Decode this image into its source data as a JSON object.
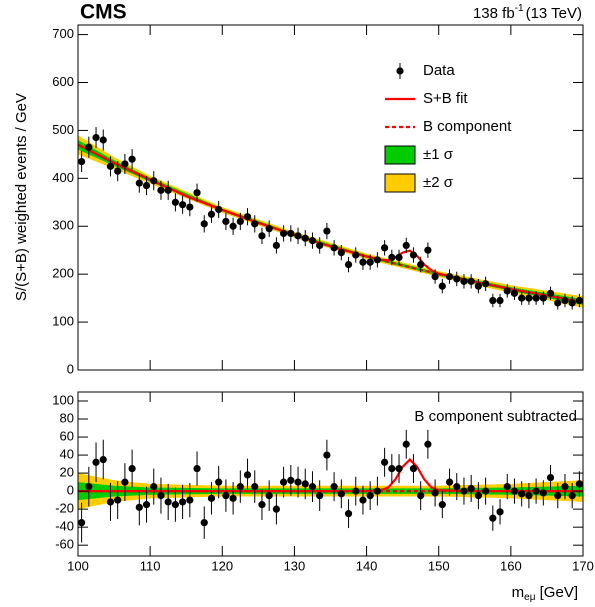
{
  "chart_data": [
    {
      "type": "fit",
      "title": "CMS",
      "lumi": [
        "138 fb",
        "-1",
        "(13 TeV)"
      ],
      "ylabel": "S/(S+B) weighted events / GeV",
      "legend": "upper right",
      "xlim": [
        100,
        170
      ],
      "ylim": [
        0,
        720
      ],
      "xticks": [
        100,
        110,
        120,
        130,
        140,
        150,
        160,
        170
      ],
      "yticks": [
        0,
        100,
        200,
        300,
        400,
        500,
        600,
        700
      ],
      "data": {
        "name": "Data",
        "color": "#000000",
        "x": [
          100.5,
          101.5,
          102.5,
          103.5,
          104.5,
          105.5,
          106.5,
          107.5,
          108.5,
          109.5,
          110.5,
          111.5,
          112.5,
          113.5,
          114.5,
          115.5,
          116.5,
          117.5,
          118.5,
          119.5,
          120.5,
          121.5,
          122.5,
          123.5,
          124.5,
          125.5,
          126.5,
          127.5,
          128.5,
          129.5,
          130.5,
          131.5,
          132.5,
          133.5,
          134.5,
          135.5,
          136.5,
          137.5,
          138.5,
          139.5,
          140.5,
          141.5,
          142.5,
          143.5,
          144.5,
          145.5,
          146.5,
          147.5,
          148.5,
          149.5,
          150.5,
          151.5,
          152.5,
          153.5,
          154.5,
          155.5,
          156.5,
          157.5,
          158.5,
          159.5,
          160.5,
          161.5,
          162.5,
          163.5,
          164.5,
          165.5,
          166.5,
          167.5,
          168.5,
          169.5
        ],
        "values": [
          435,
          465,
          485,
          480,
          425,
          415,
          430,
          440,
          390,
          385,
          395,
          375,
          375,
          350,
          345,
          340,
          370,
          305,
          325,
          335,
          310,
          300,
          310,
          320,
          305,
          280,
          295,
          260,
          285,
          285,
          280,
          275,
          270,
          260,
          290,
          255,
          245,
          220,
          240,
          225,
          225,
          230,
          255,
          235,
          235,
          260,
          240,
          220,
          250,
          195,
          175,
          195,
          190,
          185,
          185,
          175,
          180,
          145,
          145,
          165,
          160,
          150,
          150,
          150,
          150,
          160,
          140,
          145,
          140,
          145
        ],
        "errors": [
          22,
          22,
          22,
          22,
          21,
          21,
          21,
          21,
          20,
          20,
          20,
          20,
          20,
          19,
          19,
          19,
          19,
          18,
          18,
          18,
          18,
          18,
          18,
          18,
          18,
          17,
          17,
          17,
          17,
          17,
          17,
          17,
          17,
          17,
          17,
          16,
          16,
          16,
          16,
          16,
          16,
          16,
          16,
          16,
          16,
          16,
          16,
          16,
          16,
          15,
          15,
          15,
          15,
          15,
          15,
          15,
          15,
          14,
          14,
          14,
          14,
          14,
          14,
          14,
          14,
          14,
          14,
          14,
          14,
          14
        ]
      },
      "curves": [
        {
          "name": "S+B fit",
          "color": "#ff0000",
          "dash": false,
          "x": [
            100,
            105,
            110,
            115,
            120,
            125,
            130,
            135,
            140,
            142,
            143,
            144,
            145,
            146,
            147,
            148,
            149,
            150,
            155,
            160,
            165,
            170
          ],
          "values": [
            470,
            432,
            397,
            363,
            334,
            307,
            282,
            258,
            237,
            230,
            229,
            235,
            245,
            249,
            238,
            220,
            208,
            201,
            184,
            169,
            155,
            142
          ]
        },
        {
          "name": "B component",
          "color": "#ff0000",
          "dash": true,
          "x": [
            100,
            105,
            110,
            115,
            120,
            125,
            130,
            135,
            140,
            145,
            150,
            155,
            160,
            165,
            170
          ],
          "values": [
            470,
            432,
            397,
            363,
            334,
            307,
            282,
            258,
            237,
            218,
            200,
            184,
            169,
            155,
            142
          ]
        }
      ],
      "bands": [
        {
          "name": "±2 σ",
          "color": "#ffcc00",
          "x": [
            100,
            105,
            110,
            120,
            130,
            140,
            150,
            160,
            170
          ],
          "lower": [
            450,
            420,
            389,
            328,
            276,
            231,
            194,
            161,
            130
          ],
          "upper": [
            490,
            444,
            405,
            340,
            288,
            243,
            206,
            177,
            154
          ]
        },
        {
          "name": "±1 σ",
          "color": "#00cc00",
          "x": [
            100,
            105,
            110,
            120,
            130,
            140,
            150,
            160,
            170
          ],
          "lower": [
            460,
            426,
            393,
            331,
            279,
            234,
            197,
            165,
            136
          ],
          "upper": [
            480,
            438,
            401,
            337,
            285,
            240,
            203,
            173,
            148
          ]
        }
      ]
    },
    {
      "type": "fit",
      "annotation": "B component subtracted",
      "xlabel": [
        "m",
        "eμ",
        " [GeV]"
      ],
      "xlim": [
        100,
        170
      ],
      "ylim": [
        -72,
        110
      ],
      "xticks": [
        100,
        110,
        120,
        130,
        140,
        150,
        160,
        170
      ],
      "yticks": [
        -60,
        -40,
        -20,
        0,
        20,
        40,
        60,
        80,
        100
      ],
      "data": {
        "color": "#000000",
        "x": [
          100.5,
          101.5,
          102.5,
          103.5,
          104.5,
          105.5,
          106.5,
          107.5,
          108.5,
          109.5,
          110.5,
          111.5,
          112.5,
          113.5,
          114.5,
          115.5,
          116.5,
          117.5,
          118.5,
          119.5,
          120.5,
          121.5,
          122.5,
          123.5,
          124.5,
          125.5,
          126.5,
          127.5,
          128.5,
          129.5,
          130.5,
          131.5,
          132.5,
          133.5,
          134.5,
          135.5,
          136.5,
          137.5,
          138.5,
          139.5,
          140.5,
          141.5,
          142.5,
          143.5,
          144.5,
          145.5,
          146.5,
          147.5,
          148.5,
          149.5,
          150.5,
          151.5,
          152.5,
          153.5,
          154.5,
          155.5,
          156.5,
          157.5,
          158.5,
          159.5,
          160.5,
          161.5,
          162.5,
          163.5,
          164.5,
          165.5,
          166.5,
          167.5,
          168.5,
          169.5
        ],
        "values": [
          -35,
          5,
          32,
          35,
          -12,
          -10,
          10,
          25,
          -18,
          -15,
          5,
          -5,
          -12,
          -15,
          -12,
          -10,
          25,
          -35,
          -8,
          10,
          -5,
          -8,
          5,
          18,
          5,
          -15,
          -5,
          -20,
          10,
          12,
          10,
          8,
          5,
          -5,
          40,
          5,
          -3,
          -25,
          0,
          -10,
          -5,
          0,
          32,
          25,
          25,
          52,
          25,
          -5,
          52,
          -2,
          -15,
          10,
          5,
          0,
          3,
          -5,
          0,
          -30,
          -23,
          5,
          0,
          -3,
          -5,
          0,
          -2,
          15,
          -5,
          5,
          -5,
          8
        ],
        "errors": [
          22,
          22,
          22,
          22,
          21,
          21,
          21,
          21,
          20,
          20,
          20,
          20,
          20,
          19,
          19,
          19,
          19,
          18,
          18,
          18,
          18,
          18,
          18,
          18,
          18,
          17,
          17,
          17,
          17,
          17,
          17,
          17,
          17,
          17,
          17,
          16,
          16,
          16,
          16,
          16,
          16,
          16,
          16,
          16,
          16,
          16,
          16,
          16,
          16,
          15,
          15,
          15,
          15,
          15,
          15,
          15,
          15,
          14,
          14,
          14,
          14,
          14,
          14,
          14,
          14,
          14,
          14,
          14,
          14,
          14
        ]
      },
      "curves": [
        {
          "color": "#ff0000",
          "dash": false,
          "x": [
            100,
            105,
            110,
            115,
            120,
            125,
            130,
            135,
            140,
            142,
            143,
            144,
            145,
            146,
            147,
            148,
            149,
            150,
            155,
            160,
            165,
            170
          ],
          "values": [
            0,
            0,
            0,
            0,
            0,
            0,
            0,
            0,
            0,
            1,
            4,
            13,
            27,
            35,
            27,
            13,
            4,
            1,
            0,
            0,
            0,
            0
          ]
        },
        {
          "color": "#ff0000",
          "dash": true,
          "x": [
            100,
            170
          ],
          "values": [
            0,
            0
          ]
        }
      ],
      "bands": [
        {
          "color": "#ffcc00",
          "x": [
            100,
            105,
            110,
            120,
            130,
            140,
            150,
            160,
            170
          ],
          "lower": [
            -20,
            -12,
            -8,
            -6,
            -6,
            -6,
            -6,
            -8,
            -12
          ],
          "upper": [
            20,
            12,
            8,
            6,
            6,
            6,
            6,
            8,
            12
          ]
        },
        {
          "color": "#00cc00",
          "x": [
            100,
            105,
            110,
            120,
            130,
            140,
            150,
            160,
            170
          ],
          "lower": [
            -10,
            -6,
            -4,
            -3,
            -3,
            -3,
            -3,
            -4,
            -6
          ],
          "upper": [
            10,
            6,
            4,
            3,
            3,
            3,
            3,
            4,
            6
          ]
        }
      ]
    }
  ]
}
